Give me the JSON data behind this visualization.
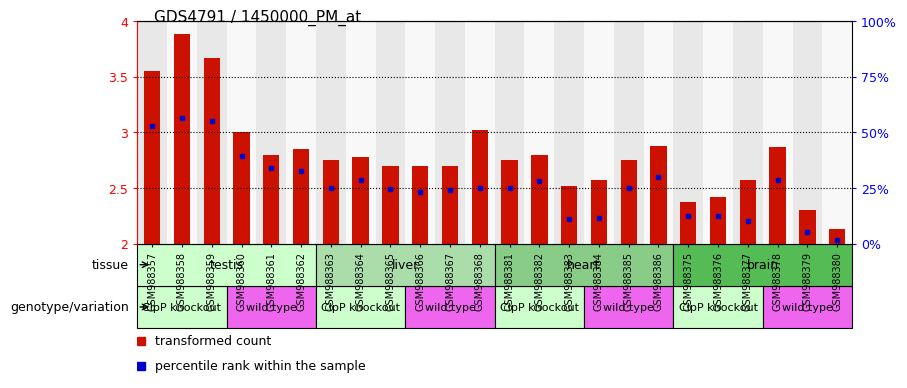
{
  "title": "GDS4791 / 1450000_PM_at",
  "samples": [
    "GSM988357",
    "GSM988358",
    "GSM988359",
    "GSM988360",
    "GSM988361",
    "GSM988362",
    "GSM988363",
    "GSM988364",
    "GSM988365",
    "GSM988366",
    "GSM988367",
    "GSM988368",
    "GSM988381",
    "GSM988382",
    "GSM988383",
    "GSM988384",
    "GSM988385",
    "GSM988386",
    "GSM988375",
    "GSM988376",
    "GSM988377",
    "GSM988378",
    "GSM988379",
    "GSM988380"
  ],
  "transformed_count": [
    3.55,
    3.88,
    3.67,
    3.0,
    2.8,
    2.85,
    2.75,
    2.78,
    2.7,
    2.7,
    2.7,
    3.02,
    2.75,
    2.8,
    2.52,
    2.57,
    2.75,
    2.88,
    2.37,
    2.42,
    2.57,
    2.87,
    2.3,
    2.13
  ],
  "percentile_rank": [
    3.06,
    3.13,
    3.1,
    2.79,
    2.68,
    2.65,
    2.5,
    2.57,
    2.49,
    2.46,
    2.48,
    2.5,
    2.5,
    2.56,
    2.22,
    2.23,
    2.5,
    2.6,
    2.25,
    2.25,
    2.2,
    2.57,
    2.1,
    2.03
  ],
  "ymin": 2.0,
  "ymax": 4.0,
  "yticks_left": [
    2.0,
    2.5,
    3.0,
    3.5,
    4.0
  ],
  "yticks_right": [
    0,
    25,
    50,
    75,
    100
  ],
  "bar_color": "#cc1100",
  "marker_color": "#0000cc",
  "col_bg_even": "#e8e8e8",
  "col_bg_odd": "#f8f8f8",
  "tissues": [
    {
      "label": "testis",
      "start": 0,
      "end": 6,
      "color": "#ccffcc"
    },
    {
      "label": "liver",
      "start": 6,
      "end": 12,
      "color": "#aaddaa"
    },
    {
      "label": "heart",
      "start": 12,
      "end": 18,
      "color": "#88cc88"
    },
    {
      "label": "brain",
      "start": 18,
      "end": 24,
      "color": "#55bb55"
    }
  ],
  "genotypes": [
    {
      "label": "ClpP knockout",
      "start": 0,
      "end": 3,
      "color": "#ccffcc"
    },
    {
      "label": "wild type",
      "start": 3,
      "end": 6,
      "color": "#ee66ee"
    },
    {
      "label": "ClpP knockout",
      "start": 6,
      "end": 9,
      "color": "#ccffcc"
    },
    {
      "label": "wild type",
      "start": 9,
      "end": 12,
      "color": "#ee66ee"
    },
    {
      "label": "ClpP knockout",
      "start": 12,
      "end": 15,
      "color": "#ccffcc"
    },
    {
      "label": "wild type",
      "start": 15,
      "end": 18,
      "color": "#ee66ee"
    },
    {
      "label": "ClpP knockout",
      "start": 18,
      "end": 21,
      "color": "#ccffcc"
    },
    {
      "label": "wild type",
      "start": 21,
      "end": 24,
      "color": "#ee66ee"
    }
  ],
  "legend_items": [
    {
      "label": "transformed count",
      "color": "#cc1100"
    },
    {
      "label": "percentile rank within the sample",
      "color": "#0000cc"
    }
  ]
}
